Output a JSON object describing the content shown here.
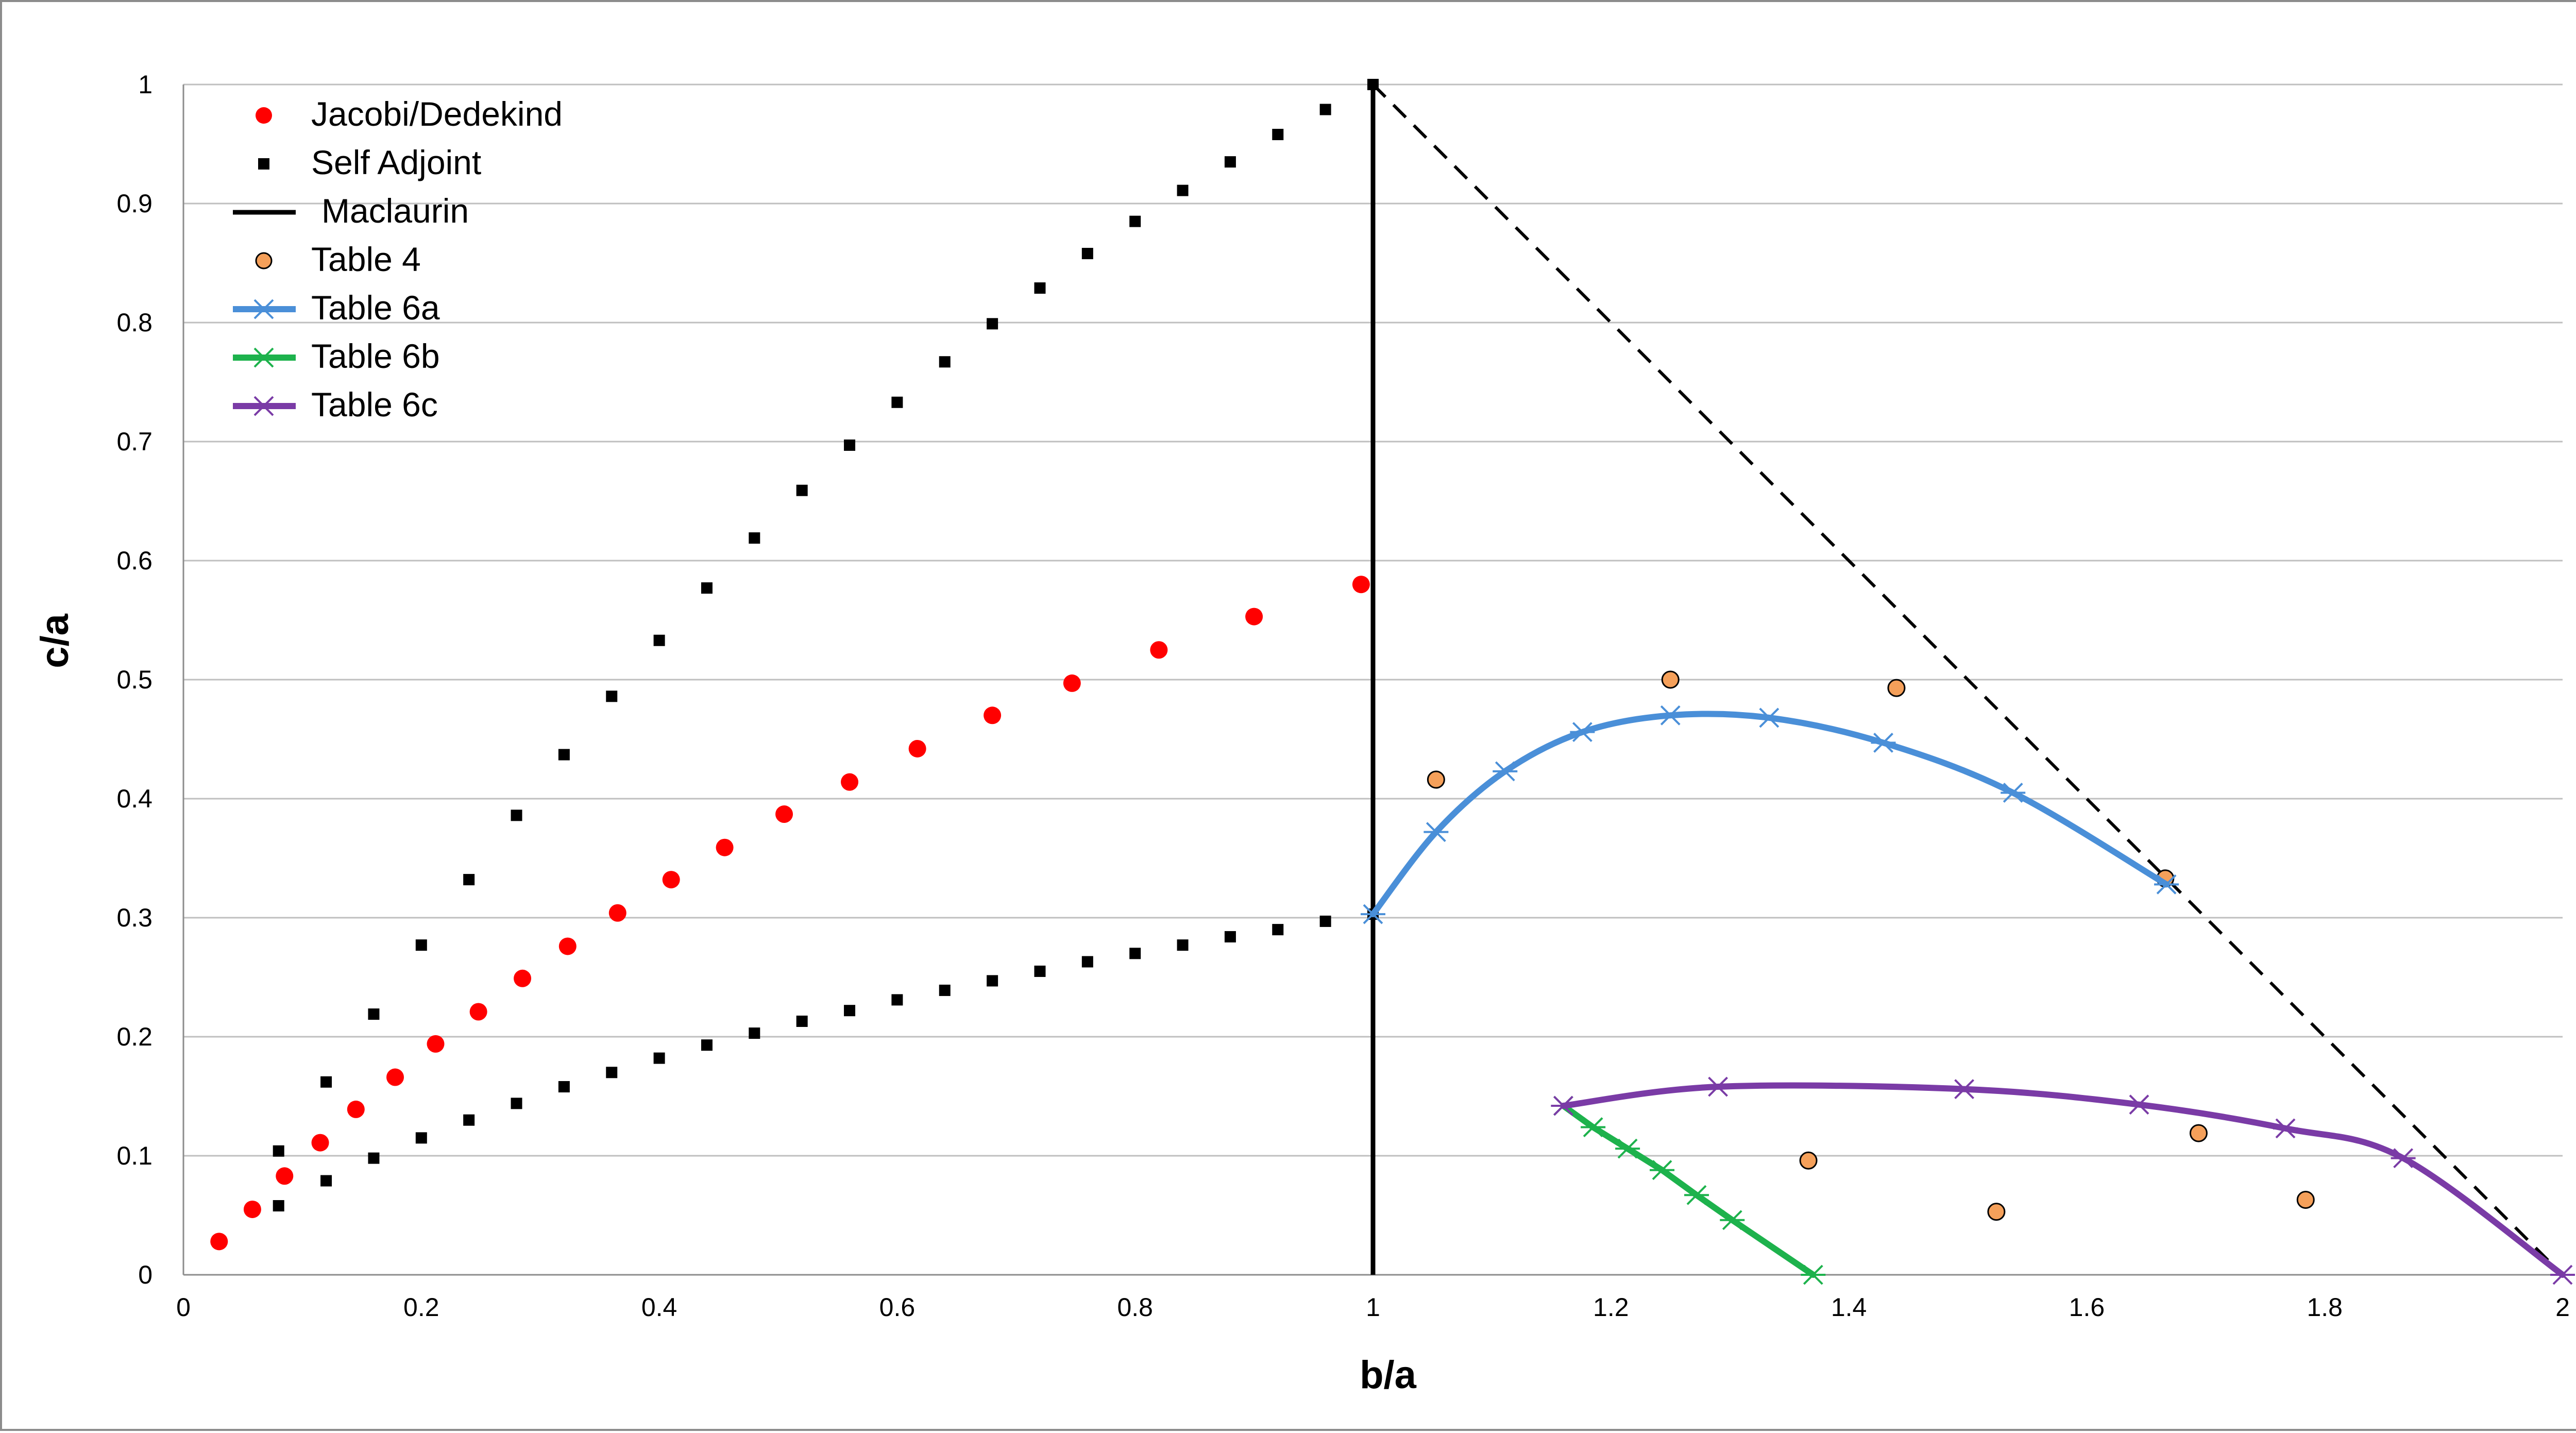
{
  "chart_data": {
    "type": "scatter",
    "xlabel": "b/a",
    "ylabel": "c/a",
    "xlim": [
      0,
      2
    ],
    "ylim": [
      0,
      1
    ],
    "x_ticks": [
      "0",
      "0.2",
      "0.4",
      "0.6",
      "0.8",
      "1",
      "1.2",
      "1.4",
      "1.6",
      "1.8",
      "2"
    ],
    "y_ticks": [
      "0",
      "0.1",
      "0.2",
      "0.3",
      "0.4",
      "0.5",
      "0.6",
      "0.7",
      "0.8",
      "0.9",
      "1"
    ],
    "grid": "horizontal",
    "legend_position": "top-left",
    "colors": {
      "jacobi": "#ff0000",
      "self_adjoint": "#000000",
      "maclaurin": "#000000",
      "table4_fill": "#f5a05a",
      "table6a": "#4a8fd8",
      "table6b": "#1db24c",
      "table6c": "#7a3ba6",
      "grid": "#bfbfbf"
    },
    "series": [
      {
        "name": "Jacobi/Dedekind",
        "style": "marker-circle",
        "x": [
          0.03,
          0.058,
          0.085,
          0.115,
          0.145,
          0.178,
          0.212,
          0.248,
          0.285,
          0.323,
          0.365,
          0.41,
          0.455,
          0.505,
          0.56,
          0.617,
          0.68,
          0.747,
          0.82,
          0.9,
          0.99
        ],
        "y": [
          0.028,
          0.055,
          0.083,
          0.111,
          0.139,
          0.166,
          0.194,
          0.221,
          0.249,
          0.276,
          0.304,
          0.332,
          0.359,
          0.387,
          0.414,
          0.442,
          0.47,
          0.497,
          0.525,
          0.553,
          0.58
        ]
      },
      {
        "name": "Self Adjoint",
        "style": "marker-square",
        "x": [
          0.08,
          0.12,
          0.16,
          0.2,
          0.24,
          0.28,
          0.32,
          0.36,
          0.4,
          0.44,
          0.48,
          0.52,
          0.56,
          0.6,
          0.64,
          0.68,
          0.72,
          0.76,
          0.8,
          0.84,
          0.88,
          0.92,
          0.96,
          1.0,
          0.08,
          0.12,
          0.16,
          0.2,
          0.24,
          0.28,
          0.32,
          0.36,
          0.4,
          0.44,
          0.48,
          0.52,
          0.56,
          0.6,
          0.64,
          0.68,
          0.72,
          0.76,
          0.8,
          0.84,
          0.88,
          0.92,
          0.96,
          1.0
        ],
        "y": [
          0.104,
          0.162,
          0.219,
          0.277,
          0.332,
          0.386,
          0.437,
          0.486,
          0.533,
          0.577,
          0.619,
          0.659,
          0.697,
          0.733,
          0.767,
          0.799,
          0.829,
          0.858,
          0.885,
          0.911,
          0.935,
          0.958,
          0.979,
          1.0,
          0.058,
          0.079,
          0.098,
          0.115,
          0.13,
          0.144,
          0.158,
          0.17,
          0.182,
          0.193,
          0.203,
          0.213,
          0.222,
          0.231,
          0.239,
          0.247,
          0.255,
          0.263,
          0.27,
          0.277,
          0.284,
          0.29,
          0.297,
          0.303
        ]
      },
      {
        "name": "Maclaurin",
        "style": "solid-line",
        "x": [
          1,
          1
        ],
        "y": [
          0,
          1
        ]
      },
      {
        "name": "",
        "style": "dashed-line",
        "x": [
          1,
          2
        ],
        "y": [
          1,
          0
        ]
      },
      {
        "name": "Table 4",
        "style": "marker-circle-outlined",
        "x": [
          1.053,
          1.25,
          1.44,
          1.666,
          1.366,
          1.524,
          1.694,
          1.784
        ],
        "y": [
          0.416,
          0.5,
          0.493,
          0.333,
          0.096,
          0.053,
          0.119,
          0.063
        ]
      },
      {
        "name": "Table 6a",
        "style": "line-star",
        "x": [
          1.0,
          1.053,
          1.111,
          1.176,
          1.25,
          1.333,
          1.429,
          1.538,
          1.667
        ],
        "y": [
          0.303,
          0.372,
          0.423,
          0.456,
          0.47,
          0.468,
          0.447,
          0.405,
          0.328
        ]
      },
      {
        "name": "Table 6b",
        "style": "line-star",
        "x": [
          1.16,
          1.185,
          1.214,
          1.243,
          1.272,
          1.302,
          1.37
        ],
        "y": [
          0.142,
          0.124,
          0.106,
          0.088,
          0.067,
          0.046,
          0.0
        ]
      },
      {
        "name": "Table 6c",
        "style": "line-star",
        "x": [
          1.16,
          1.29,
          1.497,
          1.644,
          1.767,
          1.866,
          2.0
        ],
        "y": [
          0.142,
          0.158,
          0.156,
          0.143,
          0.123,
          0.098,
          0.0
        ]
      }
    ]
  }
}
